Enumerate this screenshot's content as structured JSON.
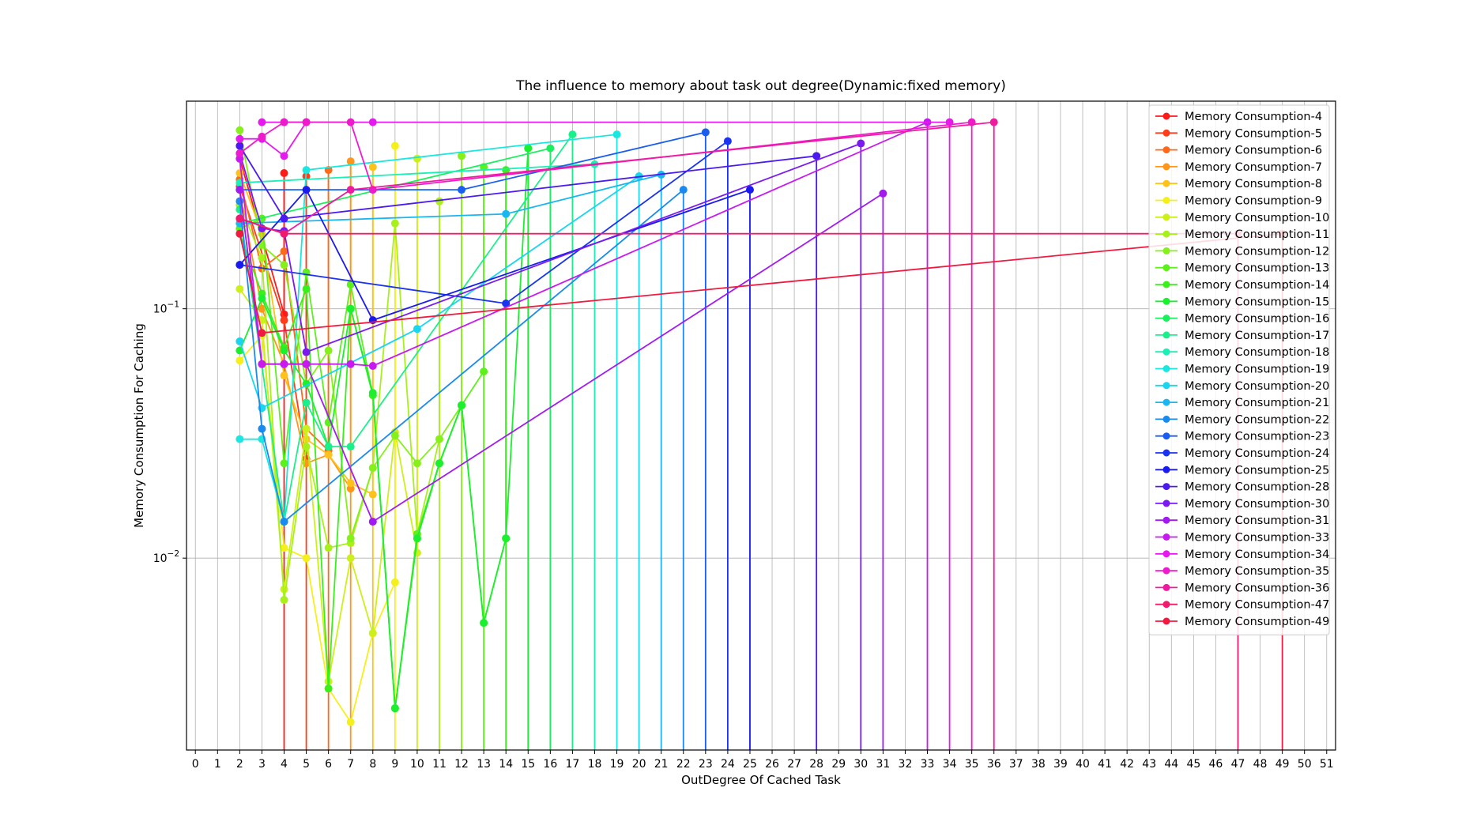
{
  "chart_data": {
    "type": "line",
    "title": "The influence to memory about task out degree(Dynamic:fixed memory)",
    "xlabel": "OutDegree Of Cached Task",
    "ylabel": "Memory Consumption For Caching",
    "yscale": "log",
    "ylim": [
      0.0017,
      0.68
    ],
    "xlim": [
      -0.4,
      51.4
    ],
    "xticks": [
      0,
      1,
      2,
      3,
      4,
      5,
      6,
      7,
      8,
      9,
      10,
      11,
      12,
      13,
      14,
      15,
      16,
      17,
      18,
      19,
      20,
      21,
      22,
      23,
      24,
      25,
      26,
      27,
      28,
      29,
      30,
      31,
      32,
      33,
      34,
      35,
      36,
      37,
      38,
      39,
      40,
      41,
      42,
      43,
      44,
      45,
      46,
      47,
      48,
      49,
      50,
      51
    ],
    "yticks": [
      {
        "value": 0.1,
        "base": "10",
        "exp": "−1"
      },
      {
        "value": 0.01,
        "base": "10",
        "exp": "−2"
      }
    ],
    "grid": true,
    "legend_position": "top-right",
    "series": [
      {
        "name": "Memory Consumption-4",
        "color": "#ff1a1a",
        "x": [
          2,
          4,
          4
        ],
        "y": [
          0.4,
          0.095,
          0.35
        ]
      },
      {
        "name": "Memory Consumption-5",
        "color": "#ff3d1a",
        "x": [
          2,
          4,
          5,
          5
        ],
        "y": [
          0.31,
          0.09,
          0.025,
          0.34
        ]
      },
      {
        "name": "Memory Consumption-6",
        "color": "#ff6a1a",
        "x": [
          2,
          3,
          4,
          5,
          6,
          6
        ],
        "y": [
          0.33,
          0.145,
          0.17,
          0.033,
          0.027,
          0.36
        ]
      },
      {
        "name": "Memory Consumption-7",
        "color": "#ff961a",
        "x": [
          2,
          3,
          4,
          5,
          6,
          7,
          7
        ],
        "y": [
          0.3,
          0.1,
          0.06,
          0.024,
          0.026,
          0.019,
          0.39
        ]
      },
      {
        "name": "Memory Consumption-8",
        "color": "#ffc21a",
        "x": [
          2,
          3,
          4,
          5,
          6,
          7,
          8,
          8
        ],
        "y": [
          0.35,
          0.2,
          0.054,
          0.03,
          0.026,
          0.02,
          0.018,
          0.37
        ]
      },
      {
        "name": "Memory Consumption-9",
        "color": "#f5f01a",
        "x": [
          2,
          3,
          4,
          5,
          6,
          7,
          8,
          9,
          9
        ],
        "y": [
          0.062,
          0.078,
          0.011,
          0.01,
          0.003,
          0.0022,
          0.005,
          0.008,
          0.45
        ]
      },
      {
        "name": "Memory Consumption-10",
        "color": "#cdef1a",
        "x": [
          2,
          3,
          4,
          5,
          6,
          7,
          8,
          9,
          10,
          10
        ],
        "y": [
          0.12,
          0.09,
          0.0075,
          0.033,
          0.0032,
          0.01,
          0.005,
          0.032,
          0.0105,
          0.4
        ]
      },
      {
        "name": "Memory Consumption-11",
        "color": "#a8f01a",
        "x": [
          2,
          3,
          4,
          5,
          6,
          7,
          8,
          9,
          10,
          11,
          11
        ],
        "y": [
          0.26,
          0.16,
          0.0068,
          0.028,
          0.011,
          0.0115,
          0.023,
          0.22,
          0.0125,
          0.03,
          0.27
        ]
      },
      {
        "name": "Memory Consumption-12",
        "color": "#86f01a",
        "x": [
          2,
          3,
          4,
          5,
          6,
          7,
          8,
          9,
          10,
          11,
          12,
          12
        ],
        "y": [
          0.52,
          0.18,
          0.15,
          0.05,
          0.068,
          0.012,
          0.023,
          0.031,
          0.024,
          0.03,
          0.041,
          0.41
        ]
      },
      {
        "name": "Memory Consumption-13",
        "color": "#5ef01a",
        "x": [
          2,
          3,
          4,
          5,
          6,
          7,
          8,
          9,
          10,
          11,
          12,
          13,
          13
        ],
        "y": [
          0.21,
          0.23,
          0.024,
          0.14,
          0.035,
          0.125,
          0.045,
          0.0025,
          0.0125,
          0.024,
          0.041,
          0.056,
          0.37
        ]
      },
      {
        "name": "Memory Consumption-14",
        "color": "#3af01a",
        "x": [
          2,
          3,
          4,
          5,
          6,
          7,
          8,
          9,
          10,
          11,
          12,
          13,
          14,
          14
        ],
        "y": [
          0.2,
          0.115,
          0.07,
          0.12,
          0.003,
          0.1,
          0.045,
          0.0025,
          0.012,
          0.024,
          0.041,
          0.0055,
          0.012,
          0.36
        ]
      },
      {
        "name": "Memory Consumption-15",
        "color": "#1af02e",
        "x": [
          2,
          3,
          4,
          5,
          6,
          7,
          8,
          9,
          10,
          11,
          12,
          13,
          14,
          15,
          15
        ],
        "y": [
          0.068,
          0.11,
          0.068,
          0.05,
          0.028,
          0.1,
          0.046,
          0.0025,
          0.012,
          0.024,
          0.041,
          0.0055,
          0.012,
          0.44,
          0.44
        ]
      },
      {
        "name": "Memory Consumption-16",
        "color": "#1af05e",
        "x": [
          2,
          16
        ],
        "y": [
          0.22,
          0.44
        ]
      },
      {
        "name": "Memory Consumption-17",
        "color": "#1af08a",
        "x": [
          2,
          4,
          5,
          6,
          7,
          17
        ],
        "y": [
          0.25,
          0.014,
          0.042,
          0.028,
          0.028,
          0.5
        ]
      },
      {
        "name": "Memory Consumption-18",
        "color": "#1af0b6",
        "x": [
          2,
          18
        ],
        "y": [
          0.32,
          0.38
        ]
      },
      {
        "name": "Memory Consumption-19",
        "color": "#1ae8e0",
        "x": [
          2,
          3,
          4,
          5,
          19
        ],
        "y": [
          0.03,
          0.03,
          0.014,
          0.36,
          0.5
        ]
      },
      {
        "name": "Memory Consumption-20",
        "color": "#1ad5f0",
        "x": [
          2,
          3,
          10,
          20
        ],
        "y": [
          0.074,
          0.04,
          0.083,
          0.34
        ]
      },
      {
        "name": "Memory Consumption-21",
        "color": "#1ab6f0",
        "x": [
          2,
          14,
          21
        ],
        "y": [
          0.22,
          0.24,
          0.345
        ]
      },
      {
        "name": "Memory Consumption-22",
        "color": "#1a8af0",
        "x": [
          2,
          3,
          4,
          22
        ],
        "y": [
          0.27,
          0.033,
          0.014,
          0.3
        ]
      },
      {
        "name": "Memory Consumption-23",
        "color": "#1a5ef0",
        "x": [
          2,
          12,
          23
        ],
        "y": [
          0.3,
          0.3,
          0.51
        ]
      },
      {
        "name": "Memory Consumption-24",
        "color": "#1a33f0",
        "x": [
          2,
          14,
          24
        ],
        "y": [
          0.15,
          0.105,
          0.47
        ]
      },
      {
        "name": "Memory Consumption-25",
        "color": "#1a1af0",
        "x": [
          2,
          5,
          8,
          25
        ],
        "y": [
          0.15,
          0.3,
          0.09,
          0.3
        ]
      },
      {
        "name": "Memory Consumption-28",
        "color": "#4a1af0",
        "x": [
          2,
          4,
          28
        ],
        "y": [
          0.45,
          0.23,
          0.41
        ]
      },
      {
        "name": "Memory Consumption-30",
        "color": "#7a1af0",
        "x": [
          2,
          3,
          4,
          5,
          30
        ],
        "y": [
          0.42,
          0.21,
          0.205,
          0.067,
          0.46
        ]
      },
      {
        "name": "Memory Consumption-31",
        "color": "#a21af0",
        "x": [
          2,
          3,
          4,
          5,
          8,
          31
        ],
        "y": [
          0.3,
          0.06,
          0.06,
          0.06,
          0.014,
          0.29
        ]
      },
      {
        "name": "Memory Consumption-33",
        "color": "#c81af0",
        "x": [
          2,
          3,
          4,
          5,
          7,
          8,
          33
        ],
        "y": [
          0.4,
          0.06,
          0.06,
          0.06,
          0.06,
          0.059,
          0.56
        ]
      },
      {
        "name": "Memory Consumption-34",
        "color": "#e61aef",
        "x": [
          2,
          3,
          4,
          5,
          3,
          4,
          5,
          8,
          34
        ],
        "y": [
          0.48,
          0.48,
          0.41,
          0.56,
          0.56,
          0.56,
          0.56,
          0.56,
          0.56
        ]
      },
      {
        "name": "Memory Consumption-35",
        "color": "#f01acd",
        "x": [
          2,
          3,
          4,
          5,
          7,
          8,
          35
        ],
        "y": [
          0.42,
          0.49,
          0.56,
          0.56,
          0.56,
          0.3,
          0.56
        ]
      },
      {
        "name": "Memory Consumption-36",
        "color": "#f01aa0",
        "x": [
          2,
          4,
          7,
          36
        ],
        "y": [
          0.23,
          0.2,
          0.3,
          0.56
        ]
      },
      {
        "name": "Memory Consumption-47",
        "color": "#f01a6e",
        "x": [
          2,
          4,
          47
        ],
        "y": [
          0.23,
          0.2,
          0.2
        ]
      },
      {
        "name": "Memory Consumption-49",
        "color": "#f01a40",
        "x": [
          2,
          3,
          49
        ],
        "y": [
          0.2,
          0.08,
          0.2
        ]
      }
    ]
  }
}
